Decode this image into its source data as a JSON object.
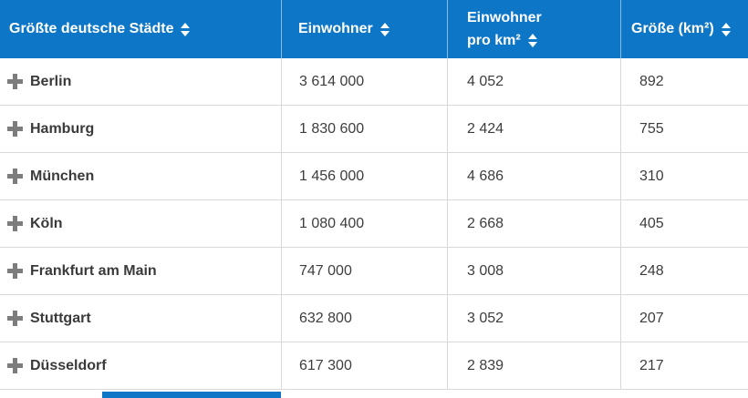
{
  "colors": {
    "header_bg": "#0e76c6",
    "header_text": "#ffffff",
    "body_text": "#3d3d3d",
    "grid_border": "#d9d9d9",
    "plus_icon": "#7d7d7d"
  },
  "table": {
    "columns": [
      {
        "label": "Größte deutsche Städte"
      },
      {
        "label": "Einwohner"
      },
      {
        "label_line1": "Einwohner",
        "label_line2": "pro km²"
      },
      {
        "label": "Größe (km²)"
      }
    ],
    "rows": [
      {
        "city": "Berlin",
        "einwohner": "3 614 000",
        "einwohner_pro_km2": "4 052",
        "groesse_km2": "892"
      },
      {
        "city": "Hamburg",
        "einwohner": "1 830 600",
        "einwohner_pro_km2": "2 424",
        "groesse_km2": "755"
      },
      {
        "city": "München",
        "einwohner": "1 456 000",
        "einwohner_pro_km2": "4 686",
        "groesse_km2": "310"
      },
      {
        "city": "Köln",
        "einwohner": "1 080 400",
        "einwohner_pro_km2": "2 668",
        "groesse_km2": "405"
      },
      {
        "city": "Frankfurt am Main",
        "einwohner": "747 000",
        "einwohner_pro_km2": "3 008",
        "groesse_km2": "248"
      },
      {
        "city": "Stuttgart",
        "einwohner": "632 800",
        "einwohner_pro_km2": "3 052",
        "groesse_km2": "207"
      },
      {
        "city": "Düsseldorf",
        "einwohner": "617 300",
        "einwohner_pro_km2": "2 839",
        "groesse_km2": "217"
      }
    ]
  },
  "chart_data": {
    "type": "table",
    "title": "Größte deutsche Städte",
    "columns": [
      "Größte deutsche Städte",
      "Einwohner",
      "Einwohner pro km²",
      "Größe (km²)"
    ],
    "rows": [
      [
        "Berlin",
        3614000,
        4052,
        892
      ],
      [
        "Hamburg",
        1830600,
        2424,
        755
      ],
      [
        "München",
        1456000,
        4686,
        310
      ],
      [
        "Köln",
        1080400,
        2668,
        405
      ],
      [
        "Frankfurt am Main",
        747000,
        3008,
        248
      ],
      [
        "Stuttgart",
        632800,
        3052,
        207
      ],
      [
        "Düsseldorf",
        617300,
        2839,
        217
      ]
    ]
  }
}
